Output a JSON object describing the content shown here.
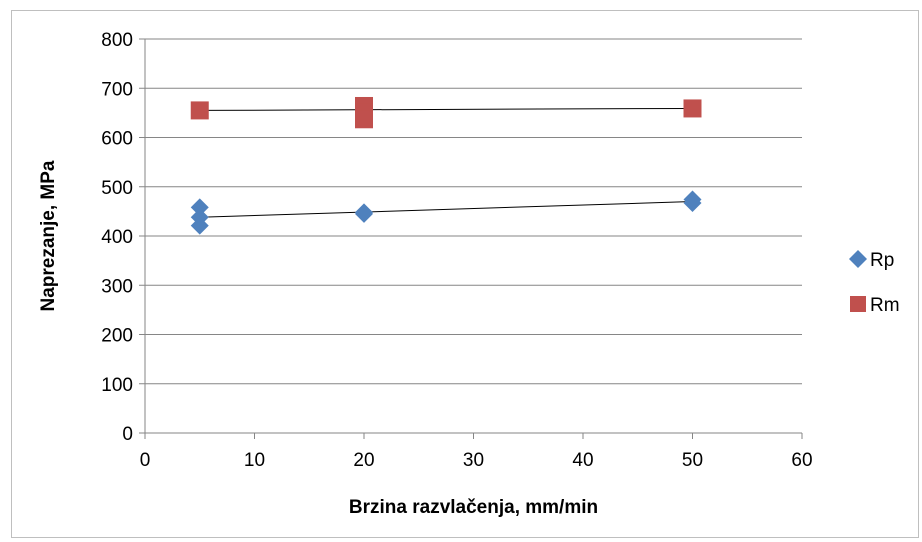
{
  "chart_data": {
    "type": "scatter",
    "title": "",
    "xlabel": "Brzina razvlačenja, mm/min",
    "ylabel": "Naprezanje, MPa",
    "xlim": [
      0,
      60
    ],
    "ylim": [
      0,
      800
    ],
    "xticks": [
      0,
      10,
      20,
      30,
      40,
      50,
      60
    ],
    "yticks": [
      0,
      100,
      200,
      300,
      400,
      500,
      600,
      700,
      800
    ],
    "grid": "horizontal",
    "legend_position": "right",
    "series": [
      {
        "name": "Rp",
        "marker": "diamond",
        "color": "#4f81bd",
        "points": [
          {
            "x": 5,
            "y": 458
          },
          {
            "x": 5,
            "y": 438
          },
          {
            "x": 5,
            "y": 421
          },
          {
            "x": 20,
            "y": 448
          },
          {
            "x": 20,
            "y": 445
          },
          {
            "x": 50,
            "y": 474
          },
          {
            "x": 50,
            "y": 467
          }
        ],
        "trendline": {
          "x": [
            5,
            50
          ],
          "y": [
            438,
            470
          ],
          "color": "#000000"
        }
      },
      {
        "name": "Rm",
        "marker": "square",
        "color": "#c0504d",
        "points": [
          {
            "x": 5,
            "y": 655
          },
          {
            "x": 20,
            "y": 664
          },
          {
            "x": 20,
            "y": 650
          },
          {
            "x": 20,
            "y": 637
          },
          {
            "x": 50,
            "y": 659
          }
        ],
        "trendline": {
          "x": [
            5,
            50
          ],
          "y": [
            655,
            659
          ],
          "color": "#000000"
        }
      }
    ]
  }
}
